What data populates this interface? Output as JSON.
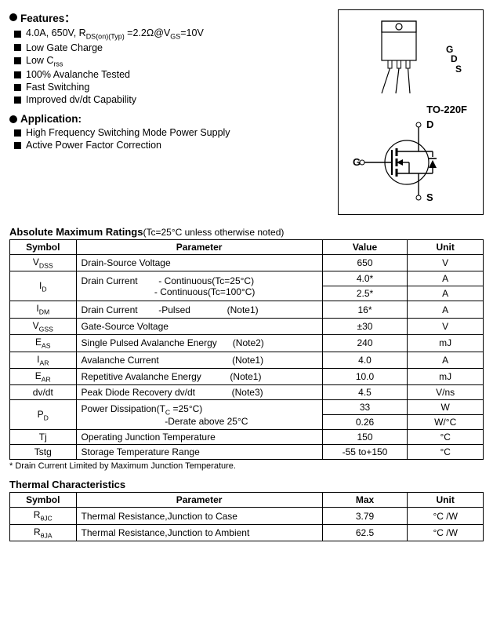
{
  "features_heading": "Features：",
  "features": [
    "4.0A, 650V, R<sub>DS(on)(Typ)</sub> =2.2Ω@V<sub>GS</sub>=10V",
    "Low Gate Charge",
    "Low C<sub>rss</sub>",
    "100% Avalanche Tested",
    "Fast Switching",
    "Improved dv/dt Capability"
  ],
  "application_heading": "Application:",
  "applications": [
    "High Frequency Switching Mode Power Supply",
    "Active Power Factor Correction"
  ],
  "package": {
    "pins": [
      "G",
      "D",
      "S"
    ],
    "name": "TO-220F",
    "term_d": "D",
    "term_g": "G",
    "term_s": "S"
  },
  "abs_title": "Absolute Maximum Ratings",
  "abs_cond": "(Tc=25°C unless otherwise noted)",
  "abs_headers": [
    "Symbol",
    "Parameter",
    "Value",
    "Unit"
  ],
  "abs_rows": [
    {
      "sym": "V<sub>DSS</sub>",
      "param": "Drain-Source Voltage",
      "val": "650",
      "unit": "V",
      "rs": 1
    },
    {
      "sym": "I<sub>D</sub>",
      "param": "Drain Current&nbsp;&nbsp;&nbsp;&nbsp;&nbsp;&nbsp;&nbsp;&nbsp;- Continuous(Tc=25°C)",
      "val": "4.0*",
      "unit": "A",
      "rs": 2
    },
    {
      "sym": "",
      "param": "&nbsp;&nbsp;&nbsp;&nbsp;&nbsp;&nbsp;&nbsp;&nbsp;&nbsp;&nbsp;&nbsp;&nbsp;&nbsp;&nbsp;&nbsp;&nbsp;&nbsp;&nbsp;&nbsp;&nbsp;&nbsp;&nbsp;&nbsp;&nbsp;&nbsp;&nbsp;&nbsp;&nbsp;- Continuous(Tc=100°C)",
      "val": "2.5*",
      "unit": "A",
      "rs": 0
    },
    {
      "sym": "I<sub>DM</sub>",
      "param": "Drain Current&nbsp;&nbsp;&nbsp;&nbsp;&nbsp;&nbsp;&nbsp;&nbsp;-Pulsed&nbsp;&nbsp;&nbsp;&nbsp;&nbsp;&nbsp;&nbsp;&nbsp;&nbsp;&nbsp;&nbsp;&nbsp;&nbsp;&nbsp;(Note1)",
      "val": "16*",
      "unit": "A",
      "rs": 1
    },
    {
      "sym": "V<sub>GSS</sub>",
      "param": "Gate-Source Voltage",
      "val": "±30",
      "unit": "V",
      "rs": 1
    },
    {
      "sym": "E<sub>AS</sub>",
      "param": "Single Pulsed Avalanche Energy&nbsp;&nbsp;&nbsp;&nbsp;&nbsp;&nbsp;(Note2)",
      "val": "240",
      "unit": "mJ",
      "rs": 1
    },
    {
      "sym": "I<sub>AR</sub>",
      "param": "Avalanche Current&nbsp;&nbsp;&nbsp;&nbsp;&nbsp;&nbsp;&nbsp;&nbsp;&nbsp;&nbsp;&nbsp;&nbsp;&nbsp;&nbsp;&nbsp;&nbsp;&nbsp;&nbsp;&nbsp;&nbsp;&nbsp;&nbsp;&nbsp;&nbsp;&nbsp;&nbsp;&nbsp;&nbsp;(Note1)",
      "val": "4.0",
      "unit": "A",
      "rs": 1
    },
    {
      "sym": "E<sub>AR</sub>",
      "param": "Repetitive Avalanche Energy&nbsp;&nbsp;&nbsp;&nbsp;&nbsp;&nbsp;&nbsp;&nbsp;&nbsp;&nbsp;&nbsp;(Note1)",
      "val": "10.0",
      "unit": "mJ",
      "rs": 1
    },
    {
      "sym": "dv/dt",
      "param": "Peak Diode Recovery dv/dt&nbsp;&nbsp;&nbsp;&nbsp;&nbsp;&nbsp;&nbsp;&nbsp;&nbsp;&nbsp;&nbsp;&nbsp;&nbsp;&nbsp;(Note3)",
      "val": "4.5",
      "unit": "V/ns",
      "rs": 1
    },
    {
      "sym": "P<sub>D</sub>",
      "param": "Power Dissipation(T<sub>C</sub> =25°C)",
      "val": "33",
      "unit": "W",
      "rs": 2
    },
    {
      "sym": "",
      "param": "&nbsp;&nbsp;&nbsp;&nbsp;&nbsp;&nbsp;&nbsp;&nbsp;&nbsp;&nbsp;&nbsp;&nbsp;&nbsp;&nbsp;&nbsp;&nbsp;&nbsp;&nbsp;&nbsp;&nbsp;&nbsp;&nbsp;&nbsp;&nbsp;&nbsp;&nbsp;&nbsp;&nbsp;&nbsp;&nbsp;&nbsp;&nbsp;-Derate above 25°C",
      "val": "0.26",
      "unit": "W/°C",
      "rs": 0
    },
    {
      "sym": "Tj",
      "param": "Operating Junction Temperature",
      "val": "150",
      "unit": "°C",
      "rs": 1
    },
    {
      "sym": "Tstg",
      "param": "Storage Temperature Range",
      "val": "-55 to+150",
      "unit": "°C",
      "rs": 1
    }
  ],
  "abs_footnote": "* Drain Current Limited by Maximum Junction Temperature.",
  "thermal_title": "Thermal Characteristics",
  "thermal_headers": [
    "Symbol",
    "Parameter",
    "Max",
    "Unit"
  ],
  "thermal_rows": [
    {
      "sym": "R<sub>θJC</sub>",
      "param": "Thermal Resistance,Junction to Case",
      "val": "3.79",
      "unit": "°C /W"
    },
    {
      "sym": "R<sub>θJA</sub>",
      "param": "Thermal Resistance,Junction to Ambient",
      "val": "62.5",
      "unit": "°C /W"
    }
  ],
  "colwidths": {
    "sym": "14%",
    "param": "52%",
    "val": "18%",
    "unit": "16%"
  }
}
